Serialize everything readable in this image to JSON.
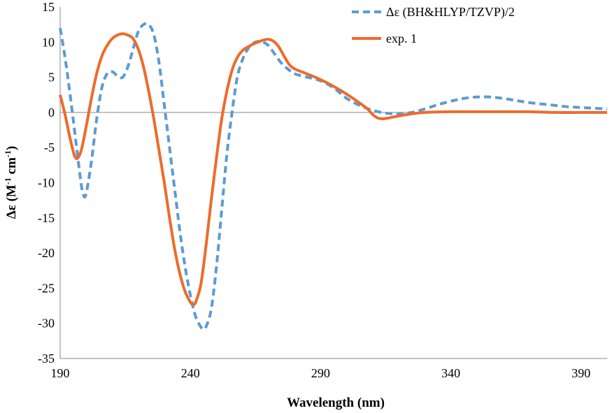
{
  "chart_data": {
    "type": "line",
    "xlabel": "Wavelength (nm)",
    "ylabel_main": "Δε (M",
    "ylabel_sup1": "-1",
    "ylabel_mid": " cm",
    "ylabel_sup2": "-1",
    "ylabel_end": ")",
    "xlim": [
      190,
      400
    ],
    "ylim": [
      -35,
      15
    ],
    "x_ticks": [
      190,
      240,
      290,
      340,
      390
    ],
    "y_ticks": [
      15,
      10,
      5,
      0,
      -5,
      -10,
      -15,
      -20,
      -25,
      -30,
      -35
    ],
    "legend_position": "top-right",
    "grid": false,
    "series": [
      {
        "name": "Δε (BH&HLYP/TZVP)/2",
        "color": "#5b9bd5",
        "style": "dashed",
        "points": [
          [
            190,
            12
          ],
          [
            192,
            7.5
          ],
          [
            194,
            2
          ],
          [
            196,
            -4
          ],
          [
            198,
            -10
          ],
          [
            199,
            -11.8
          ],
          [
            200,
            -11.5
          ],
          [
            202,
            -7
          ],
          [
            204,
            -1
          ],
          [
            206,
            3.5
          ],
          [
            208,
            5.5
          ],
          [
            210,
            5.8
          ],
          [
            212,
            5.2
          ],
          [
            214,
            5
          ],
          [
            216,
            6.5
          ],
          [
            218,
            9
          ],
          [
            220,
            11.5
          ],
          [
            222,
            12.5
          ],
          [
            224,
            12.5
          ],
          [
            226,
            11
          ],
          [
            228,
            7
          ],
          [
            230,
            1
          ],
          [
            232,
            -5
          ],
          [
            234,
            -11
          ],
          [
            236,
            -17
          ],
          [
            238,
            -22
          ],
          [
            240,
            -26
          ],
          [
            242,
            -29
          ],
          [
            244,
            -30.5
          ],
          [
            245,
            -30.8
          ],
          [
            246,
            -30.5
          ],
          [
            248,
            -28
          ],
          [
            250,
            -22
          ],
          [
            252,
            -14
          ],
          [
            254,
            -6
          ],
          [
            256,
            0
          ],
          [
            258,
            5
          ],
          [
            260,
            7.5
          ],
          [
            262,
            9
          ],
          [
            264,
            9.8
          ],
          [
            266,
            10.1
          ],
          [
            268,
            10
          ],
          [
            270,
            9.5
          ],
          [
            272,
            8.5
          ],
          [
            275,
            7
          ],
          [
            278,
            6
          ],
          [
            280,
            5.5
          ],
          [
            285,
            5
          ],
          [
            290,
            4.5
          ],
          [
            295,
            3.5
          ],
          [
            300,
            2
          ],
          [
            305,
            1
          ],
          [
            310,
            0.3
          ],
          [
            315,
            -0.1
          ],
          [
            320,
            -0.2
          ],
          [
            325,
            0
          ],
          [
            330,
            0.5
          ],
          [
            335,
            1.1
          ],
          [
            340,
            1.6
          ],
          [
            345,
            2
          ],
          [
            350,
            2.2
          ],
          [
            355,
            2.2
          ],
          [
            360,
            2
          ],
          [
            365,
            1.7
          ],
          [
            370,
            1.4
          ],
          [
            375,
            1.2
          ],
          [
            380,
            1
          ],
          [
            385,
            0.8
          ],
          [
            390,
            0.7
          ],
          [
            395,
            0.6
          ],
          [
            400,
            0.5
          ]
        ]
      },
      {
        "name": "exp. 1",
        "color": "#ed6b2c",
        "style": "solid",
        "points": [
          [
            190,
            2.5
          ],
          [
            192,
            -0.5
          ],
          [
            194,
            -4
          ],
          [
            196,
            -6.5
          ],
          [
            198,
            -5.5
          ],
          [
            200,
            -2
          ],
          [
            202,
            2
          ],
          [
            204,
            5.5
          ],
          [
            206,
            8
          ],
          [
            208,
            9.5
          ],
          [
            210,
            10.5
          ],
          [
            212,
            11
          ],
          [
            214,
            11.2
          ],
          [
            216,
            11
          ],
          [
            218,
            10.5
          ],
          [
            220,
            9
          ],
          [
            222,
            6.5
          ],
          [
            224,
            3
          ],
          [
            226,
            -1
          ],
          [
            228,
            -5.5
          ],
          [
            230,
            -10
          ],
          [
            232,
            -15
          ],
          [
            234,
            -19.5
          ],
          [
            236,
            -23
          ],
          [
            238,
            -25.5
          ],
          [
            240,
            -27
          ],
          [
            241,
            -27.3
          ],
          [
            242,
            -27
          ],
          [
            244,
            -24.5
          ],
          [
            246,
            -19
          ],
          [
            248,
            -12.5
          ],
          [
            250,
            -6.5
          ],
          [
            252,
            -1
          ],
          [
            254,
            3
          ],
          [
            256,
            6
          ],
          [
            258,
            7.8
          ],
          [
            260,
            8.8
          ],
          [
            262,
            9.3
          ],
          [
            264,
            9.7
          ],
          [
            266,
            10
          ],
          [
            268,
            10.3
          ],
          [
            270,
            10.4
          ],
          [
            272,
            10.1
          ],
          [
            274,
            9.3
          ],
          [
            276,
            8
          ],
          [
            278,
            6.8
          ],
          [
            280,
            6.2
          ],
          [
            284,
            5.6
          ],
          [
            288,
            5
          ],
          [
            292,
            4.3
          ],
          [
            296,
            3.5
          ],
          [
            300,
            2.6
          ],
          [
            304,
            1.6
          ],
          [
            308,
            0.5
          ],
          [
            310,
            -0.3
          ],
          [
            312,
            -0.8
          ],
          [
            314,
            -0.9
          ],
          [
            316,
            -0.8
          ],
          [
            320,
            -0.5
          ],
          [
            325,
            -0.2
          ],
          [
            330,
            0
          ],
          [
            340,
            0.1
          ],
          [
            350,
            0.1
          ],
          [
            360,
            0.1
          ],
          [
            370,
            0.1
          ],
          [
            380,
            0
          ],
          [
            390,
            0
          ],
          [
            400,
            0
          ]
        ]
      }
    ]
  }
}
